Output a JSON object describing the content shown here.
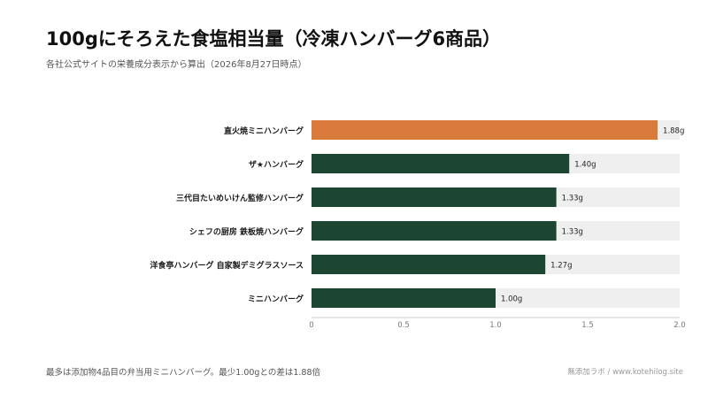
{
  "title": "100gにそろえた食塩相当量（冷凍ハンバーグ6商品）",
  "subtitle": "各社公式サイトの栄養成分表示から算出（2026年8月27日時点）",
  "footnote": "最多は添加物4品目の弁当用ミニハンバーグ。最少1.00gとの差は1.88倍",
  "credit": "無添加ラボ / www.kotehilog.site",
  "colors": {
    "highlight": "#d97c3b",
    "bar": "#1c4632",
    "track": "#efefef",
    "axis": "#cccccc"
  },
  "chart_data": {
    "type": "bar",
    "orientation": "horizontal",
    "categories": [
      "直火焼ミニハンバーグ",
      "ザ★ハンバーグ",
      "三代目たいめいけん監修ハンバーグ",
      "シェフの厨房 鉄板焼ハンバーグ",
      "洋食亭ハンバーグ 自家製デミグラスソース",
      "ミニハンバーグ"
    ],
    "values": [
      1.88,
      1.4,
      1.33,
      1.33,
      1.27,
      1.0
    ],
    "value_labels": [
      "1.88g",
      "1.40g",
      "1.33g",
      "1.33g",
      "1.27g",
      "1.00g"
    ],
    "highlight_index": 0,
    "xlim": [
      0,
      2.0
    ],
    "xticks": [
      0,
      0.5,
      1.0,
      1.5,
      2.0
    ],
    "xtick_labels": [
      "0",
      "0.5",
      "1.0",
      "1.5",
      "2.0"
    ],
    "grid": false
  }
}
